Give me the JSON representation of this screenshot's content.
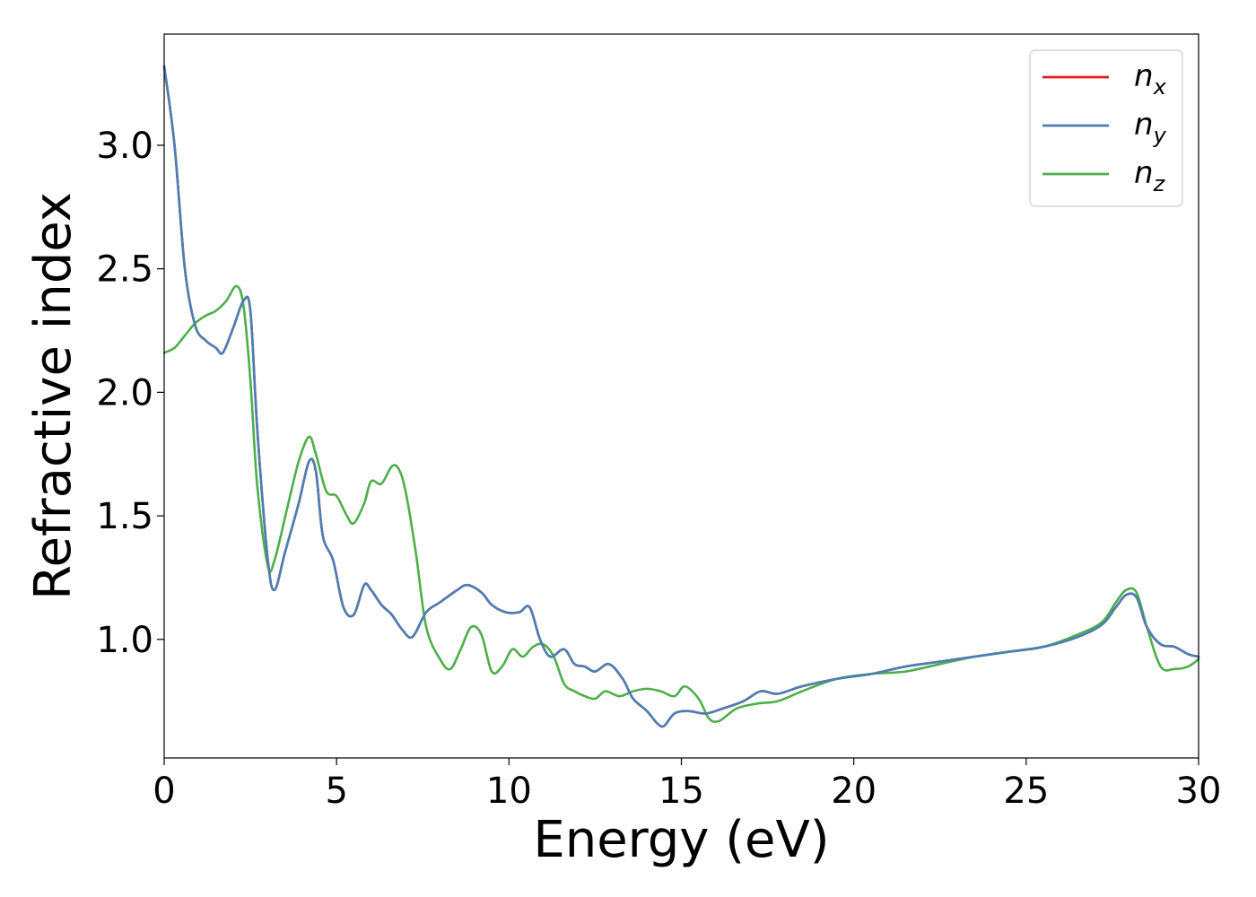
{
  "chart_data": {
    "type": "line",
    "title": "",
    "xlabel": "Energy (eV)",
    "ylabel": "Refractive index",
    "xlim": [
      0,
      30
    ],
    "ylim": [
      0.52,
      3.45
    ],
    "xticks": [
      0,
      5,
      10,
      15,
      20,
      25,
      30
    ],
    "xtick_labels": [
      "0",
      "5",
      "10",
      "15",
      "20",
      "25",
      "30"
    ],
    "yticks": [
      1.0,
      1.5,
      2.0,
      2.5,
      3.0
    ],
    "ytick_labels": [
      "1.0",
      "1.5",
      "2.0",
      "2.5",
      "3.0"
    ],
    "grid": false,
    "legend_position": "top-right",
    "series": [
      {
        "name": "n_x",
        "label_base": "n",
        "label_sub": "x",
        "color": "#e41a1c",
        "x": [
          0,
          0.3,
          0.6,
          0.9,
          1.2,
          1.5,
          1.7,
          2.0,
          2.3,
          2.5,
          2.7,
          3.0,
          3.2,
          3.5,
          3.9,
          4.2,
          4.4,
          4.6,
          4.9,
          5.2,
          5.5,
          5.8,
          6.0,
          6.3,
          6.6,
          6.9,
          7.2,
          7.6,
          8.0,
          8.5,
          8.8,
          9.2,
          9.5,
          9.9,
          10.3,
          10.6,
          10.9,
          11.2,
          11.6,
          11.9,
          12.2,
          12.5,
          12.9,
          13.3,
          13.6,
          14.0,
          14.3,
          14.5,
          14.8,
          15.2,
          15.7,
          16.2,
          16.8,
          17.3,
          17.8,
          18.5,
          19.5,
          20.5,
          21.5,
          22.5,
          23.5,
          24.5,
          25.5,
          26.5,
          27.2,
          27.6,
          27.9,
          28.2,
          28.5,
          28.9,
          29.3,
          29.7,
          30.0
        ],
        "values": [
          3.32,
          3.0,
          2.5,
          2.27,
          2.21,
          2.18,
          2.16,
          2.26,
          2.37,
          2.33,
          1.85,
          1.33,
          1.2,
          1.35,
          1.55,
          1.72,
          1.68,
          1.42,
          1.32,
          1.13,
          1.1,
          1.22,
          1.2,
          1.14,
          1.1,
          1.04,
          1.01,
          1.11,
          1.15,
          1.2,
          1.22,
          1.19,
          1.14,
          1.11,
          1.11,
          1.13,
          1.0,
          0.93,
          0.96,
          0.9,
          0.89,
          0.87,
          0.9,
          0.84,
          0.76,
          0.71,
          0.66,
          0.65,
          0.7,
          0.71,
          0.7,
          0.72,
          0.75,
          0.79,
          0.78,
          0.81,
          0.84,
          0.86,
          0.89,
          0.91,
          0.93,
          0.95,
          0.97,
          1.01,
          1.06,
          1.13,
          1.18,
          1.17,
          1.05,
          0.98,
          0.97,
          0.94,
          0.93
        ]
      },
      {
        "name": "n_y",
        "label_base": "n",
        "label_sub": "y",
        "color": "#4a7fb5",
        "x": [
          0,
          0.3,
          0.6,
          0.9,
          1.2,
          1.5,
          1.7,
          2.0,
          2.3,
          2.5,
          2.7,
          3.0,
          3.2,
          3.5,
          3.9,
          4.2,
          4.4,
          4.6,
          4.9,
          5.2,
          5.5,
          5.8,
          6.0,
          6.3,
          6.6,
          6.9,
          7.2,
          7.6,
          8.0,
          8.5,
          8.8,
          9.2,
          9.5,
          9.9,
          10.3,
          10.6,
          10.9,
          11.2,
          11.6,
          11.9,
          12.2,
          12.5,
          12.9,
          13.3,
          13.6,
          14.0,
          14.3,
          14.5,
          14.8,
          15.2,
          15.7,
          16.2,
          16.8,
          17.3,
          17.8,
          18.5,
          19.5,
          20.5,
          21.5,
          22.5,
          23.5,
          24.5,
          25.5,
          26.5,
          27.2,
          27.6,
          27.9,
          28.2,
          28.5,
          28.9,
          29.3,
          29.7,
          30.0
        ],
        "values": [
          3.32,
          3.0,
          2.5,
          2.27,
          2.21,
          2.18,
          2.16,
          2.26,
          2.37,
          2.33,
          1.85,
          1.33,
          1.2,
          1.35,
          1.55,
          1.72,
          1.68,
          1.42,
          1.32,
          1.13,
          1.1,
          1.22,
          1.2,
          1.14,
          1.1,
          1.04,
          1.01,
          1.11,
          1.15,
          1.2,
          1.22,
          1.19,
          1.14,
          1.11,
          1.11,
          1.13,
          1.0,
          0.93,
          0.96,
          0.9,
          0.89,
          0.87,
          0.9,
          0.84,
          0.76,
          0.71,
          0.66,
          0.65,
          0.7,
          0.71,
          0.7,
          0.72,
          0.75,
          0.79,
          0.78,
          0.81,
          0.84,
          0.86,
          0.89,
          0.91,
          0.93,
          0.95,
          0.97,
          1.01,
          1.06,
          1.13,
          1.18,
          1.17,
          1.05,
          0.98,
          0.97,
          0.94,
          0.93
        ]
      },
      {
        "name": "n_z",
        "label_base": "n",
        "label_sub": "z",
        "color": "#4daf4a",
        "x": [
          0,
          0.3,
          0.6,
          0.9,
          1.2,
          1.5,
          1.8,
          2.1,
          2.3,
          2.5,
          2.7,
          3.0,
          3.2,
          3.6,
          3.9,
          4.2,
          4.4,
          4.7,
          5.0,
          5.3,
          5.5,
          5.8,
          6.0,
          6.3,
          6.6,
          6.8,
          7.0,
          7.3,
          7.6,
          8.0,
          8.3,
          8.6,
          8.9,
          9.2,
          9.5,
          9.8,
          10.1,
          10.4,
          10.7,
          11.0,
          11.3,
          11.6,
          11.9,
          12.2,
          12.5,
          12.8,
          13.2,
          13.6,
          14.0,
          14.4,
          14.8,
          15.1,
          15.5,
          15.8,
          16.1,
          16.6,
          17.2,
          17.8,
          18.5,
          19.5,
          20.5,
          21.5,
          22.5,
          23.5,
          24.5,
          25.5,
          26.5,
          27.2,
          27.6,
          27.9,
          28.2,
          28.5,
          28.9,
          29.3,
          29.7,
          30.0
        ],
        "values": [
          2.16,
          2.18,
          2.23,
          2.28,
          2.31,
          2.33,
          2.37,
          2.43,
          2.35,
          2.05,
          1.62,
          1.3,
          1.32,
          1.55,
          1.72,
          1.82,
          1.75,
          1.6,
          1.58,
          1.5,
          1.47,
          1.55,
          1.64,
          1.63,
          1.7,
          1.69,
          1.6,
          1.35,
          1.05,
          0.92,
          0.88,
          0.96,
          1.05,
          1.02,
          0.87,
          0.89,
          0.96,
          0.93,
          0.97,
          0.98,
          0.93,
          0.82,
          0.79,
          0.77,
          0.76,
          0.79,
          0.77,
          0.79,
          0.8,
          0.79,
          0.77,
          0.81,
          0.76,
          0.68,
          0.67,
          0.72,
          0.74,
          0.75,
          0.79,
          0.84,
          0.86,
          0.87,
          0.9,
          0.93,
          0.95,
          0.97,
          1.02,
          1.07,
          1.15,
          1.2,
          1.19,
          1.05,
          0.89,
          0.88,
          0.89,
          0.92
        ]
      }
    ]
  }
}
